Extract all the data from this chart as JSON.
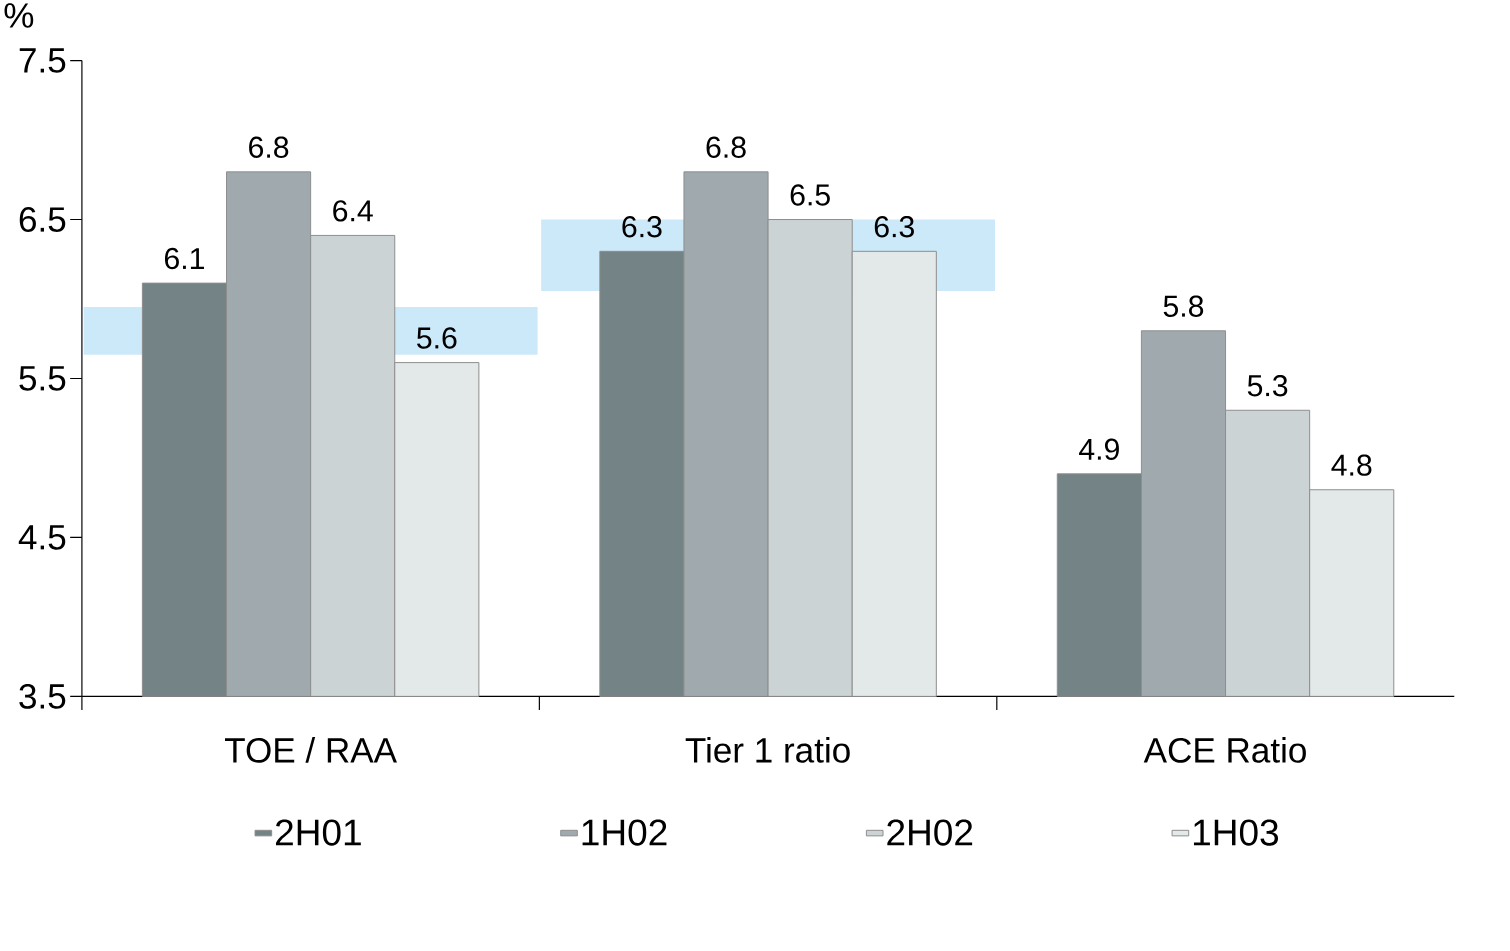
{
  "chart_data": {
    "type": "bar",
    "ylabel": "%",
    "categories": [
      "TOE / RAA",
      "Tier 1 ratio",
      "ACE Ratio"
    ],
    "series": [
      {
        "type": "bar",
        "color": "#cce9f9",
        "base": [
          5.65,
          6.05,
          null
        ],
        "values": [
          0.3,
          0.45,
          null
        ]
      },
      {
        "name": "2H01",
        "color": "#748385",
        "values": [
          6.1,
          6.3,
          4.9
        ],
        "value_labels": [
          "6.1",
          "6.3",
          "4.9"
        ]
      },
      {
        "name": "1H02",
        "color": "#a0aaae",
        "values": [
          6.8,
          6.8,
          5.8
        ],
        "value_labels": [
          "6.8",
          "6.8",
          "5.8"
        ]
      },
      {
        "name": "2H02",
        "color": "#cbd3d5",
        "values": [
          6.4,
          6.5,
          5.3
        ],
        "value_labels": [
          "6.4",
          "6.5",
          "5.3"
        ]
      },
      {
        "name": "1H03",
        "color": "#e3e8e8",
        "values": [
          5.6,
          6.3,
          4.8
        ],
        "value_labels": [
          "5.6",
          "6.3",
          "4.8"
        ]
      }
    ],
    "ylim": [
      3.5,
      7.5
    ],
    "yticks": [
      3.5,
      4.5,
      5.5,
      6.5,
      7.5
    ],
    "legend": "bottom"
  }
}
